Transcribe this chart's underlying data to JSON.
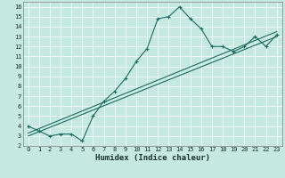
{
  "title": "",
  "xlabel": "Humidex (Indice chaleur)",
  "xlim": [
    -0.5,
    23.5
  ],
  "ylim": [
    2,
    16.5
  ],
  "xticks": [
    0,
    1,
    2,
    3,
    4,
    5,
    6,
    7,
    8,
    9,
    10,
    11,
    12,
    13,
    14,
    15,
    16,
    17,
    18,
    19,
    20,
    21,
    22,
    23
  ],
  "yticks": [
    2,
    3,
    4,
    5,
    6,
    7,
    8,
    9,
    10,
    11,
    12,
    13,
    14,
    15,
    16
  ],
  "bg_color": "#c5e8e0",
  "line_color": "#1a6b60",
  "curve_x": [
    0,
    1,
    2,
    3,
    4,
    5,
    6,
    7,
    8,
    9,
    10,
    11,
    12,
    13,
    14,
    15,
    16,
    17,
    18,
    19,
    20,
    21,
    22,
    23
  ],
  "curve_y": [
    4.0,
    3.5,
    3.0,
    3.2,
    3.2,
    2.5,
    5.0,
    6.5,
    7.5,
    8.8,
    10.5,
    11.8,
    14.8,
    15.0,
    16.0,
    14.8,
    13.8,
    12.0,
    12.0,
    11.5,
    12.0,
    13.0,
    12.0,
    13.2
  ],
  "line1_x": [
    0,
    23
  ],
  "line1_y": [
    3.0,
    13.0
  ],
  "line2_x": [
    0,
    23
  ],
  "line2_y": [
    3.3,
    13.5
  ],
  "tick_fontsize": 5.0,
  "xlabel_fontsize": 6.5,
  "grid_color": "#ffffff",
  "spine_color": "#808080"
}
